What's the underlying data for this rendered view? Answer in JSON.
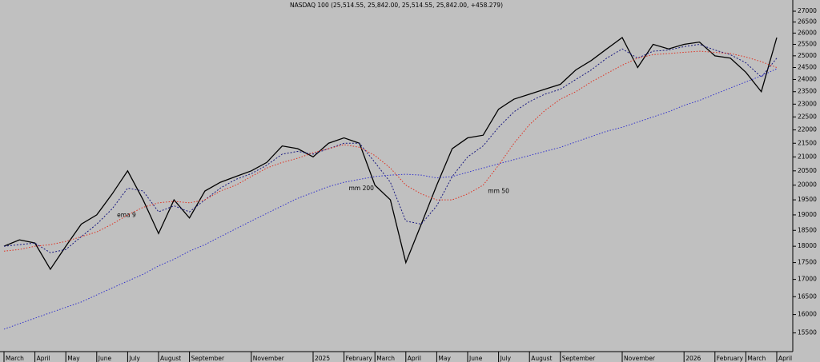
{
  "chart_data": {
    "type": "line",
    "title": "NASDAQ 100 (25,514.55, 25,842.00, 25,514.55, 25,842.00, +458.279)",
    "categories": [
      "March",
      null,
      "April",
      null,
      "May",
      null,
      "June",
      null,
      "July",
      null,
      "August",
      null,
      "September",
      null,
      null,
      null,
      "November",
      null,
      null,
      null,
      "2025",
      null,
      "February",
      null,
      "March",
      null,
      "April",
      null,
      "May",
      null,
      "June",
      null,
      "July",
      null,
      "August",
      null,
      "September",
      null,
      null,
      null,
      "November",
      null,
      null,
      null,
      "2026",
      null,
      "February",
      null,
      "March",
      null,
      "April"
    ],
    "series": [
      {
        "color": "#000000",
        "values": [
          18000,
          18200,
          18100,
          17300,
          18000,
          18700,
          19000,
          19700,
          20500,
          19500,
          18400,
          19500,
          18900,
          19800,
          20100,
          20300,
          20500,
          20800,
          21400,
          21300,
          21000,
          21500,
          21700,
          21500,
          20000,
          19500,
          17500,
          18700,
          20000,
          21300,
          21700,
          21800,
          22800,
          23200,
          23400,
          23600,
          23800,
          24400,
          24800,
          25300,
          25800,
          24500,
          25500,
          25300,
          25500,
          25600,
          25000,
          24900,
          24300,
          23500,
          25800
        ]
      },
      {
        "name": "ema 9",
        "color": "#1a1a80",
        "values": [
          18000,
          18050,
          18100,
          17800,
          17900,
          18300,
          18700,
          19200,
          19900,
          19800,
          19100,
          19300,
          19100,
          19500,
          19900,
          20200,
          20400,
          20700,
          21100,
          21200,
          21100,
          21300,
          21500,
          21500,
          20800,
          20100,
          18800,
          18700,
          19300,
          20300,
          21000,
          21400,
          22100,
          22700,
          23100,
          23400,
          23600,
          24000,
          24400,
          24900,
          25300,
          24900,
          25200,
          25250,
          25400,
          25500,
          25250,
          25050,
          24700,
          24100,
          24900
        ]
      },
      {
        "name": "mm 200",
        "color": "#3333cc",
        "values": [
          15600,
          15750,
          15900,
          16050,
          16200,
          16350,
          16550,
          16750,
          16950,
          17150,
          17400,
          17600,
          17850,
          18050,
          18300,
          18550,
          18800,
          19050,
          19300,
          19550,
          19750,
          19950,
          20100,
          20200,
          20300,
          20350,
          20380,
          20350,
          20250,
          20300,
          20450,
          20600,
          20750,
          20900,
          21050,
          21200,
          21350,
          21550,
          21750,
          21950,
          22100,
          22300,
          22500,
          22700,
          22950,
          23150,
          23400,
          23650,
          23900,
          24150,
          24450
        ]
      },
      {
        "name": "mm 50",
        "color": "#e03020",
        "values": [
          17850,
          17900,
          18000,
          18050,
          18150,
          18300,
          18450,
          18700,
          19000,
          19250,
          19400,
          19450,
          19400,
          19500,
          19800,
          20000,
          20300,
          20600,
          20800,
          20950,
          21150,
          21300,
          21450,
          21350,
          21050,
          20600,
          20000,
          19700,
          19500,
          19500,
          19700,
          20000,
          20700,
          21500,
          22200,
          22750,
          23200,
          23500,
          23900,
          24250,
          24600,
          24900,
          25050,
          25100,
          25150,
          25200,
          25150,
          25100,
          24950,
          24750,
          24500
        ]
      }
    ],
    "ylim": [
      15050,
      27300
    ],
    "yticks": [
      15500,
      16000,
      16500,
      17000,
      17500,
      18000,
      18500,
      19000,
      19500,
      20000,
      20500,
      21000,
      21500,
      22000,
      22500,
      23000,
      23500,
      24000,
      24500,
      25000,
      25500,
      26000,
      26500,
      27000
    ],
    "log_scale": true,
    "grid": false
  }
}
